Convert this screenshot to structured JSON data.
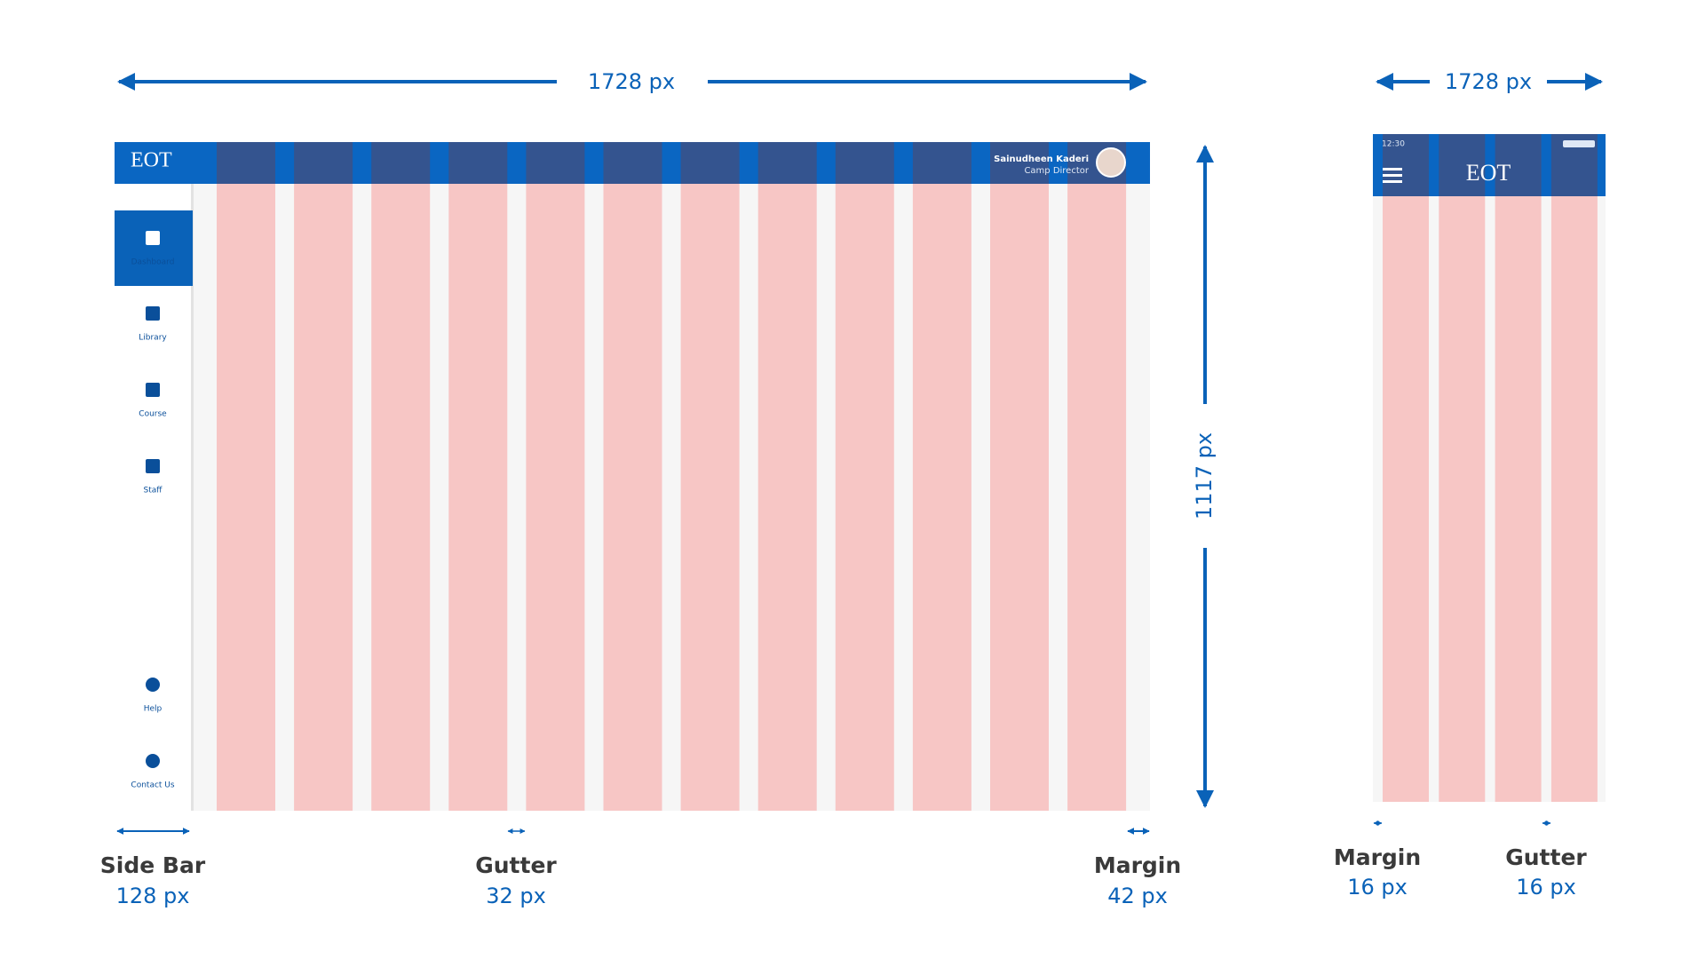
{
  "desktop": {
    "width_label": "1728 px",
    "height_label": "1117 px",
    "logo": "EOT",
    "user": {
      "name": "Sainudheen Kaderi",
      "role": "Camp Director"
    },
    "nav": [
      "Dashboard",
      "Library",
      "Course",
      "Staff",
      "Help",
      "Contact Us"
    ]
  },
  "mobile": {
    "width_label": "1728 px",
    "time": "12:30",
    "logo": "EOT"
  },
  "annotations": [
    {
      "title": "Side Bar",
      "value": "128 px"
    },
    {
      "title": "Gutter",
      "value": "32 px"
    },
    {
      "title": "Margin",
      "value": "42 px"
    },
    {
      "title": "Margin",
      "value": "16 px"
    },
    {
      "title": "Gutter",
      "value": "16 px"
    }
  ]
}
